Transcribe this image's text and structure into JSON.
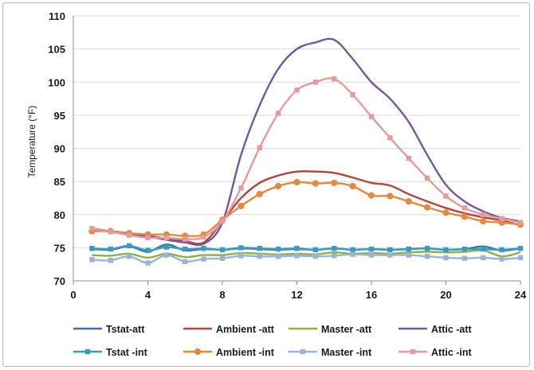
{
  "chart_data": {
    "type": "line",
    "title": "",
    "xlabel": "",
    "ylabel": "Temperature (°F)",
    "xlim": [
      0,
      24
    ],
    "ylim": [
      70,
      110
    ],
    "x_ticks": [
      0,
      4,
      8,
      12,
      16,
      20,
      24
    ],
    "y_ticks": [
      70,
      75,
      80,
      85,
      90,
      95,
      100,
      105,
      110
    ],
    "grid": "horizontal",
    "legend_position": "bottom",
    "x": [
      1,
      2,
      3,
      4,
      5,
      6,
      7,
      8,
      9,
      10,
      11,
      12,
      13,
      14,
      15,
      16,
      17,
      18,
      19,
      20,
      21,
      22,
      23,
      24
    ],
    "series": [
      {
        "name": "Tstat-att",
        "color": "#3f6fb3",
        "marker": "none",
        "values": [
          74.8,
          74.7,
          75.2,
          74.4,
          75.5,
          74.6,
          74.8,
          74.7,
          74.9,
          74.8,
          74.7,
          74.8,
          74.7,
          74.9,
          74.7,
          74.8,
          74.7,
          74.8,
          74.9,
          74.7,
          74.8,
          75.2,
          74.6,
          74.9
        ]
      },
      {
        "name": "Ambient -att",
        "color": "#b5443d",
        "marker": "none",
        "values": [
          77.9,
          77.5,
          77.2,
          76.8,
          76.4,
          76.0,
          75.8,
          79.0,
          82.5,
          84.8,
          85.9,
          86.5,
          86.5,
          86.3,
          85.6,
          84.8,
          84.4,
          83.1,
          82.0,
          81.0,
          80.2,
          79.6,
          79.1,
          78.4
        ]
      },
      {
        "name": "Master -att",
        "color": "#8ab33f",
        "marker": "none",
        "values": [
          73.9,
          73.8,
          74.1,
          73.5,
          74.1,
          73.6,
          73.9,
          73.9,
          74.2,
          74.1,
          74.0,
          74.1,
          74.0,
          74.3,
          74.1,
          74.2,
          74.1,
          74.3,
          74.4,
          74.3,
          74.4,
          74.6,
          73.7,
          74.3
        ]
      },
      {
        "name": "Attic -att",
        "color": "#7458a0",
        "marker": "none",
        "values": [
          77.8,
          77.4,
          77.0,
          76.7,
          76.2,
          75.8,
          75.6,
          78.8,
          89.0,
          96.5,
          102.0,
          105.0,
          106.0,
          106.4,
          103.5,
          100.0,
          97.5,
          94.0,
          89.0,
          84.5,
          82.0,
          80.5,
          79.5,
          79.0
        ]
      },
      {
        "name": "Tstat -int",
        "color": "#3a9bbf",
        "marker": "square",
        "values": [
          74.9,
          74.8,
          75.3,
          74.6,
          75.1,
          74.8,
          74.9,
          74.7,
          75.0,
          74.9,
          74.8,
          74.9,
          74.7,
          74.9,
          74.7,
          74.8,
          74.7,
          74.8,
          74.9,
          74.7,
          74.8,
          74.8,
          74.7,
          74.9
        ]
      },
      {
        "name": "Ambient  -int",
        "color": "#e7883e",
        "marker": "circle",
        "values": [
          77.5,
          77.5,
          77.2,
          77.0,
          77.0,
          76.8,
          77.0,
          79.2,
          81.3,
          83.1,
          84.3,
          84.9,
          84.7,
          84.8,
          84.3,
          82.9,
          82.8,
          82.0,
          81.1,
          80.3,
          79.7,
          79.0,
          78.8,
          78.5
        ]
      },
      {
        "name": "Master -int",
        "color": "#9bb3db",
        "marker": "square",
        "values": [
          73.2,
          73.1,
          73.7,
          72.7,
          73.9,
          72.9,
          73.3,
          73.4,
          73.8,
          73.7,
          73.7,
          73.8,
          73.7,
          73.8,
          74.0,
          73.9,
          73.9,
          73.9,
          73.7,
          73.5,
          73.4,
          73.5,
          73.3,
          73.5
        ]
      },
      {
        "name": "Attic -int",
        "color": "#e69a9a",
        "marker": "square",
        "values": [
          77.9,
          77.4,
          76.9,
          76.5,
          76.5,
          76.3,
          76.6,
          79.0,
          84.0,
          90.1,
          95.3,
          98.8,
          100.0,
          100.5,
          98.1,
          94.8,
          91.6,
          88.5,
          85.5,
          82.8,
          81.0,
          80.0,
          79.4,
          78.8
        ]
      }
    ]
  }
}
